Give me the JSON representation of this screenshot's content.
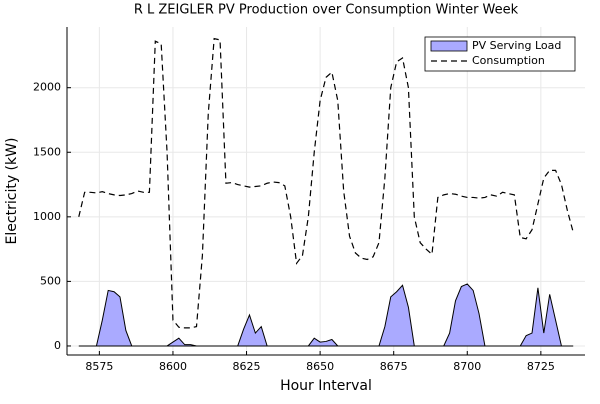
{
  "chart_data": {
    "type": "area-line",
    "title": "R L ZEIGLER PV Production over Consumption Winter Week",
    "xlabel": "Hour Interval",
    "ylabel": "Electricity (kW)",
    "x": [
      8568,
      8570,
      8572,
      8574,
      8576,
      8578,
      8580,
      8582,
      8584,
      8586,
      8588,
      8590,
      8592,
      8594,
      8596,
      8598,
      8600,
      8602,
      8604,
      8606,
      8608,
      8610,
      8612,
      8614,
      8616,
      8618,
      8620,
      8622,
      8624,
      8626,
      8628,
      8630,
      8632,
      8634,
      8636,
      8638,
      8640,
      8642,
      8644,
      8646,
      8648,
      8650,
      8652,
      8654,
      8656,
      8658,
      8660,
      8662,
      8664,
      8666,
      8668,
      8670,
      8672,
      8674,
      8676,
      8678,
      8680,
      8682,
      8684,
      8686,
      8688,
      8690,
      8692,
      8694,
      8696,
      8698,
      8700,
      8702,
      8704,
      8706,
      8708,
      8710,
      8712,
      8714,
      8716,
      8718,
      8720,
      8722,
      8724,
      8726,
      8728,
      8730,
      8732,
      8734,
      8736
    ],
    "series": [
      {
        "name": "PV Serving Load",
        "kind": "area",
        "color": "#aaaaff",
        "values": [
          0,
          0,
          0,
          0,
          200,
          430,
          420,
          380,
          120,
          0,
          0,
          0,
          0,
          0,
          0,
          0,
          30,
          60,
          10,
          10,
          0,
          0,
          0,
          0,
          0,
          0,
          0,
          0,
          130,
          240,
          100,
          150,
          0,
          0,
          0,
          0,
          0,
          0,
          0,
          0,
          60,
          30,
          35,
          50,
          0,
          0,
          0,
          0,
          0,
          0,
          0,
          0,
          150,
          380,
          420,
          470,
          300,
          0,
          0,
          0,
          0,
          0,
          0,
          100,
          350,
          460,
          480,
          430,
          250,
          0,
          0,
          0,
          0,
          0,
          0,
          0,
          80,
          100,
          450,
          100,
          400,
          200,
          0,
          0,
          0
        ]
      },
      {
        "name": "Consumption",
        "kind": "dashed-line",
        "color": "#000000",
        "values": [
          1000,
          1190,
          1190,
          1185,
          1195,
          1180,
          1170,
          1165,
          1170,
          1180,
          1200,
          1190,
          1190,
          2360,
          2340,
          1500,
          200,
          145,
          140,
          140,
          150,
          700,
          1800,
          2380,
          2370,
          1260,
          1265,
          1250,
          1240,
          1230,
          1235,
          1240,
          1260,
          1270,
          1265,
          1240,
          1000,
          640,
          700,
          1000,
          1500,
          1900,
          2080,
          2120,
          1900,
          1200,
          850,
          720,
          680,
          670,
          690,
          800,
          1300,
          2000,
          2200,
          2230,
          2000,
          1000,
          800,
          750,
          710,
          1150,
          1170,
          1180,
          1175,
          1160,
          1150,
          1150,
          1145,
          1150,
          1170,
          1160,
          1190,
          1180,
          1170,
          840,
          830,
          900,
          1100,
          1300,
          1360,
          1360,
          1250,
          1050,
          880
        ]
      }
    ],
    "xlim": [
      8564,
      8740
    ],
    "ylim": [
      -70,
      2470
    ],
    "xticks": [
      8575,
      8600,
      8625,
      8650,
      8675,
      8700,
      8725
    ],
    "yticks": [
      0,
      500,
      1000,
      1500,
      2000
    ],
    "grid": true,
    "legend": "top-right"
  }
}
